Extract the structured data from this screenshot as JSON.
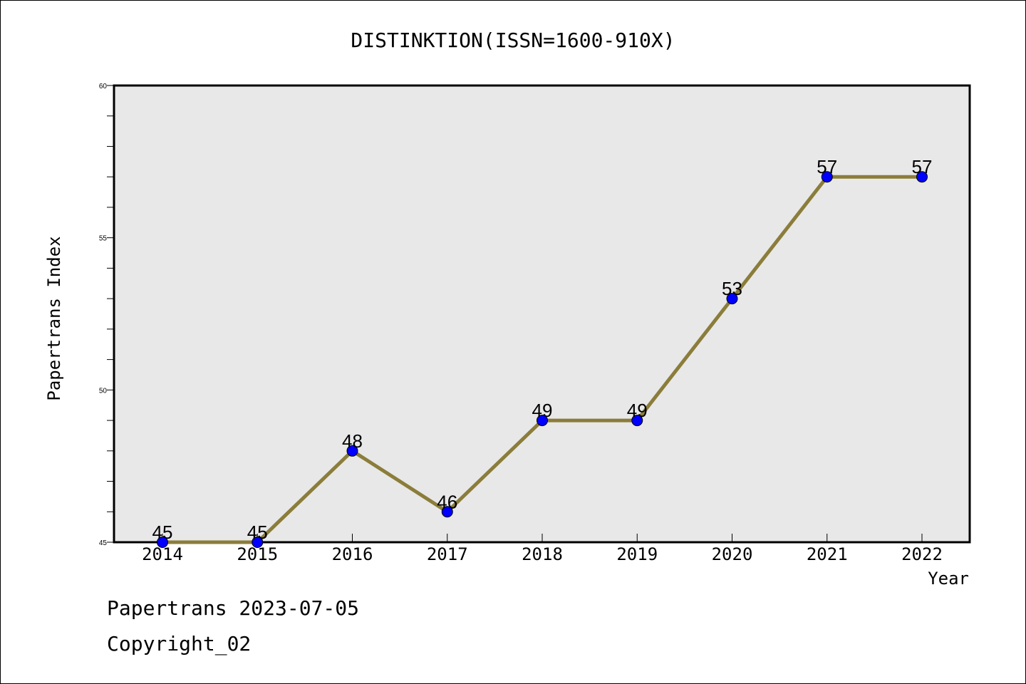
{
  "chart_data": {
    "type": "line",
    "title": "DISTINKTION(ISSN=1600-910X)",
    "xlabel": "Year",
    "ylabel": "Papertrans Index",
    "x": [
      "2014",
      "2015",
      "2016",
      "2017",
      "2018",
      "2019",
      "2020",
      "2021",
      "2022"
    ],
    "series": [
      {
        "values": [
          45,
          45,
          48,
          46,
          49,
          49,
          53,
          57,
          57
        ]
      }
    ],
    "data_labels": [
      "45",
      "45",
      "48",
      "46",
      "49",
      "49",
      "53",
      "57",
      "57"
    ],
    "ylim": [
      45,
      60
    ],
    "y_ticks": [
      "45",
      "50",
      "55",
      "60"
    ],
    "grid": false,
    "colors": {
      "line": "#8B7D3A",
      "marker": "#0000FF",
      "plot_background": "#E8E8E8"
    }
  },
  "footer": {
    "line1": "Papertrans 2023-07-05",
    "line2": "Copyright_02"
  }
}
